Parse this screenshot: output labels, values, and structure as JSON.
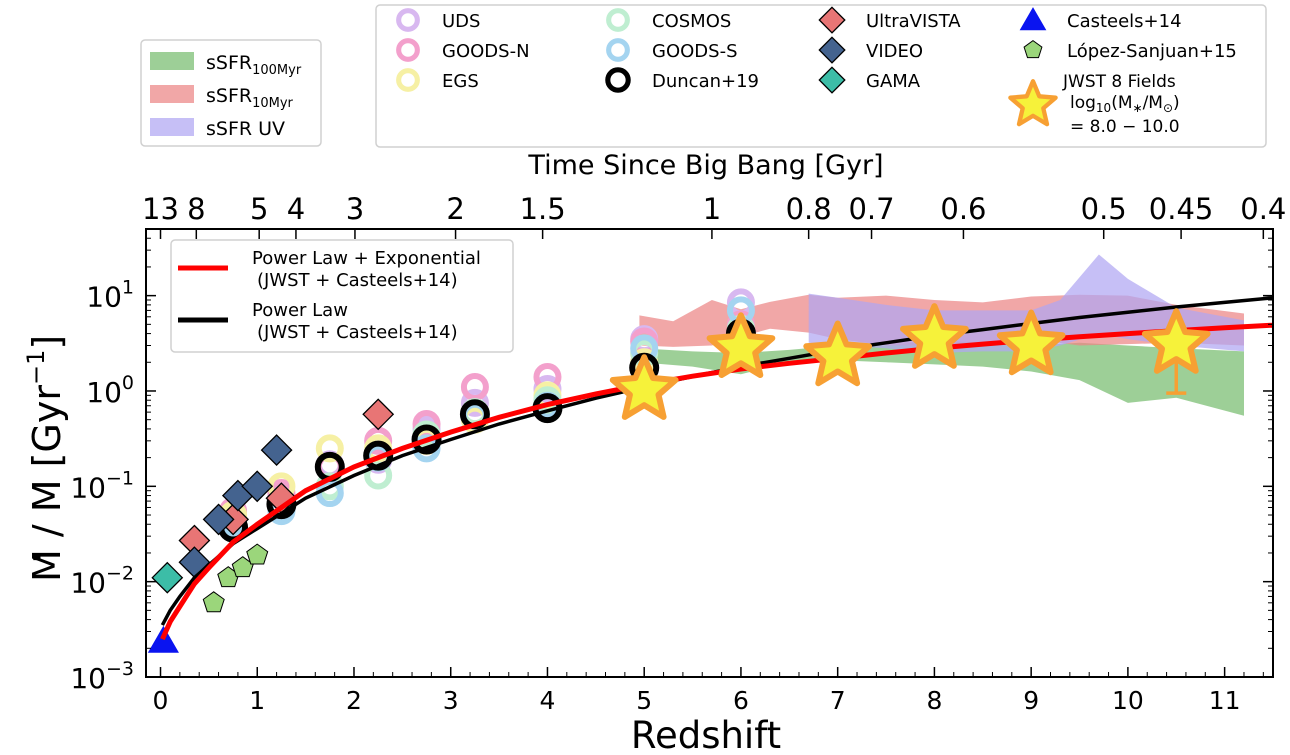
{
  "chart_data": {
    "type": "scatter",
    "xlabel": "Redshift",
    "ylabel_main": "M / M [Gyr",
    "ylabel_sup": "−1",
    "ylabel_close": "]",
    "ylabel_dot": "·",
    "top_xlabel": "Time Since Big Bang [Gyr]",
    "yscale": "log",
    "xlim": [
      -0.15,
      11.5
    ],
    "ylim": [
      0.001,
      50
    ],
    "x_ticks": [
      "0",
      "1",
      "2",
      "3",
      "4",
      "5",
      "6",
      "7",
      "8",
      "9",
      "10",
      "11"
    ],
    "y_tick_base": "10",
    "y_ticks": [
      {
        "value": 0.001,
        "exp": "−3"
      },
      {
        "value": 0.01,
        "exp": "−2"
      },
      {
        "value": 0.1,
        "exp": "−1"
      },
      {
        "value": 1,
        "exp": "0"
      },
      {
        "value": 10,
        "exp": "1"
      }
    ],
    "top_ticks": [
      {
        "label": "13",
        "z": 0.0
      },
      {
        "label": "8",
        "z": 0.37
      },
      {
        "label": "5",
        "z": 1.02
      },
      {
        "label": "4",
        "z": 1.4
      },
      {
        "label": "3",
        "z": 2.01
      },
      {
        "label": "2",
        "z": 3.05
      },
      {
        "label": "1.5",
        "z": 3.95
      },
      {
        "label": "1",
        "z": 5.7
      },
      {
        "label": "0.8",
        "z": 6.7
      },
      {
        "label": "0.7",
        "z": 7.35
      },
      {
        "label": "0.6",
        "z": 8.3
      },
      {
        "label": "0.5",
        "z": 9.75
      },
      {
        "label": "0.45",
        "z": 10.55
      },
      {
        "label": "0.4",
        "z": 11.4
      }
    ],
    "bands": [
      {
        "name": "sSFR_100Myr",
        "label_main": "sSFR",
        "label_sub": "100Myr",
        "color": "#77bd6f",
        "x": [
          4.95,
          5.5,
          6.0,
          6.5,
          7.0,
          7.5,
          8.0,
          8.5,
          9.0,
          9.5,
          10.0,
          10.5,
          11.2
        ],
        "upper": [
          2.8,
          2.6,
          2.5,
          2.7,
          3.0,
          3.0,
          3.4,
          3.2,
          3.0,
          3.2,
          3.0,
          2.8,
          2.6
        ],
        "lower": [
          2.0,
          1.8,
          1.5,
          2.0,
          2.1,
          2.0,
          1.9,
          1.8,
          1.6,
          1.3,
          0.75,
          0.85,
          0.55
        ]
      },
      {
        "name": "sSFR_10Myr",
        "label_main": "sSFR",
        "label_sub": "10Myr",
        "color": "#ec8585",
        "x": [
          4.95,
          5.3,
          5.7,
          6.0,
          6.3,
          6.7,
          7.0,
          7.5,
          8.0,
          8.5,
          9.0,
          9.5,
          10.0,
          10.5,
          11.2
        ],
        "upper": [
          6.2,
          5.4,
          9.0,
          7.2,
          8.6,
          10.2,
          9.5,
          10.0,
          9.0,
          8.5,
          9.8,
          10.2,
          10.0,
          8.0,
          6.5
        ],
        "lower": [
          3.0,
          2.9,
          3.0,
          3.7,
          4.5,
          4.1,
          3.5,
          3.0,
          3.0,
          3.2,
          3.5,
          3.0,
          3.1,
          3.2,
          3.0
        ]
      },
      {
        "name": "sSFR_UV",
        "label_main": "sSFR UV",
        "label_sub": "",
        "color": "#b0a6f2",
        "x": [
          6.7,
          7.0,
          7.5,
          8.0,
          8.5,
          9.0,
          9.3,
          9.7,
          10.0,
          10.5,
          11.2
        ],
        "upper": [
          10.5,
          9.5,
          8.0,
          7.0,
          7.0,
          7.0,
          9.0,
          27.0,
          15.0,
          7.5,
          5.5
        ],
        "lower": [
          3.2,
          3.0,
          2.8,
          2.5,
          2.6,
          2.6,
          3.0,
          4.0,
          3.5,
          3.0,
          2.6
        ]
      }
    ],
    "models": [
      {
        "name": "Power Law + Exponential",
        "line2": "(JWST + Casteels+14)",
        "color": "#ff0000",
        "x": [
          0.02,
          0.1,
          0.2,
          0.35,
          0.5,
          0.75,
          1.0,
          1.5,
          2.0,
          2.5,
          3.0,
          3.5,
          4.0,
          4.5,
          5.0,
          5.5,
          6.0,
          6.5,
          7.0,
          7.5,
          8.0,
          8.5,
          9.0,
          9.5,
          10.0,
          10.5,
          11.0,
          11.5
        ],
        "y": [
          0.0025,
          0.0038,
          0.0055,
          0.0095,
          0.014,
          0.026,
          0.04,
          0.09,
          0.16,
          0.25,
          0.37,
          0.53,
          0.72,
          0.93,
          1.17,
          1.43,
          1.7,
          1.95,
          2.2,
          2.5,
          2.8,
          3.1,
          3.4,
          3.7,
          4.0,
          4.3,
          4.6,
          4.9
        ]
      },
      {
        "name": "Power Law",
        "line2": "(JWST + Casteels+14)",
        "color": "#000000",
        "x": [
          0.02,
          0.1,
          0.2,
          0.35,
          0.5,
          0.75,
          1.0,
          1.5,
          2.0,
          2.5,
          3.0,
          3.5,
          4.0,
          4.5,
          5.0,
          5.5,
          6.0,
          6.5,
          7.0,
          7.5,
          8.0,
          8.5,
          9.0,
          9.5,
          10.0,
          10.5,
          11.0,
          11.5
        ],
        "y": [
          0.0035,
          0.005,
          0.007,
          0.011,
          0.015,
          0.025,
          0.036,
          0.075,
          0.13,
          0.21,
          0.31,
          0.45,
          0.62,
          0.84,
          1.1,
          1.42,
          1.8,
          2.2,
          2.7,
          3.2,
          3.8,
          4.4,
          5.1,
          5.9,
          6.7,
          7.6,
          8.5,
          9.5
        ]
      }
    ],
    "series": [
      {
        "name": "UDS",
        "marker": "ring",
        "color": "#d8b8f0",
        "points": [
          [
            0.75,
            0.045
          ],
          [
            1.25,
            0.08
          ],
          [
            1.75,
            0.17
          ],
          [
            2.25,
            0.19
          ],
          [
            2.75,
            0.4
          ],
          [
            3.25,
            0.75
          ],
          [
            4.0,
            1.05
          ],
          [
            5.0,
            3.5
          ],
          [
            6.0,
            8.5
          ]
        ]
      },
      {
        "name": "GOODS-N",
        "marker": "ring",
        "color": "#f3a0cc",
        "points": [
          [
            0.75,
            0.055
          ],
          [
            1.25,
            0.085
          ],
          [
            1.75,
            0.16
          ],
          [
            2.25,
            0.3
          ],
          [
            2.75,
            0.45
          ],
          [
            3.25,
            1.1
          ],
          [
            4.0,
            1.4
          ],
          [
            5.0,
            3.3
          ],
          [
            6.0,
            5.0
          ]
        ]
      },
      {
        "name": "EGS",
        "marker": "ring",
        "color": "#f6f0a4",
        "points": [
          [
            0.75,
            0.05
          ],
          [
            1.25,
            0.1
          ],
          [
            1.75,
            0.25
          ],
          [
            2.25,
            0.25
          ],
          [
            2.75,
            0.3
          ],
          [
            3.25,
            0.5
          ],
          [
            4.0,
            0.9
          ],
          [
            5.0,
            2.0
          ]
        ]
      },
      {
        "name": "COSMOS",
        "marker": "ring",
        "color": "#bfeed1",
        "points": [
          [
            0.75,
            0.04
          ],
          [
            1.25,
            0.06
          ],
          [
            1.75,
            0.1
          ],
          [
            2.25,
            0.13
          ],
          [
            2.75,
            0.35
          ],
          [
            3.25,
            0.6
          ],
          [
            4.0,
            0.8
          ],
          [
            5.0,
            2.5
          ],
          [
            6.0,
            4.5
          ]
        ]
      },
      {
        "name": "GOODS-S",
        "marker": "ring",
        "color": "#a4d4f0",
        "points": [
          [
            0.75,
            0.04
          ],
          [
            1.25,
            0.055
          ],
          [
            1.75,
            0.085
          ],
          [
            2.25,
            0.2
          ],
          [
            2.75,
            0.25
          ],
          [
            3.25,
            0.55
          ],
          [
            4.0,
            0.7
          ],
          [
            5.0,
            2.8
          ],
          [
            6.0,
            7.0
          ]
        ]
      },
      {
        "name": "Duncan+19",
        "marker": "ring_black",
        "color": "#000000",
        "points": [
          [
            0.75,
            0.037
          ],
          [
            1.25,
            0.065
          ],
          [
            1.75,
            0.16
          ],
          [
            2.25,
            0.21
          ],
          [
            2.75,
            0.31
          ],
          [
            3.25,
            0.57
          ],
          [
            4.0,
            0.66
          ],
          [
            5.0,
            1.75
          ],
          [
            6.0,
            4.0
          ]
        ]
      },
      {
        "name": "UltraVISTA",
        "marker": "diamond",
        "color": "#e87575",
        "points": [
          [
            0.35,
            0.027
          ],
          [
            0.75,
            0.045
          ],
          [
            1.25,
            0.075
          ],
          [
            2.25,
            0.57
          ]
        ]
      },
      {
        "name": "VIDEO",
        "marker": "diamond",
        "color": "#44638f",
        "points": [
          [
            0.35,
            0.016
          ],
          [
            0.6,
            0.045
          ],
          [
            0.8,
            0.08
          ],
          [
            1.0,
            0.1
          ],
          [
            1.2,
            0.24
          ]
        ]
      },
      {
        "name": "GAMA",
        "marker": "diamond",
        "color": "#3cbda7",
        "points": [
          [
            0.07,
            0.011
          ]
        ]
      },
      {
        "name": "Casteels+14",
        "marker": "triangle",
        "color": "#0a14f0",
        "points": [
          [
            0.03,
            0.0024
          ]
        ]
      },
      {
        "name": "López-Sanjuan+15",
        "marker": "pentagon",
        "color": "#9bd67b",
        "points": [
          [
            0.55,
            0.006
          ],
          [
            0.7,
            0.011
          ],
          [
            0.85,
            0.014
          ],
          [
            1.0,
            0.019
          ]
        ]
      },
      {
        "name": "JWST 8 Fields",
        "marker": "star",
        "color": "#f6f23a",
        "edge": "#f7a033",
        "points": [
          [
            5.0,
            1.02
          ],
          [
            6.0,
            2.8
          ],
          [
            7.0,
            2.3
          ],
          [
            8.0,
            3.5
          ],
          [
            9.0,
            3.0
          ],
          [
            10.5,
            3.1
          ]
        ],
        "err_low": [
          null,
          null,
          null,
          null,
          null,
          0.95
        ]
      }
    ],
    "legend_left": [
      "sSFR_100Myr",
      "sSFR_10Myr",
      "sSFR_UV"
    ],
    "legend_top_columns": [
      [
        "UDS",
        "GOODS-N",
        "EGS"
      ],
      [
        "COSMOS",
        "GOODS-S",
        "Duncan+19"
      ],
      [
        "UltraVISTA",
        "VIDEO",
        "GAMA"
      ],
      [
        "Casteels+14",
        "López-Sanjuan+15",
        "JWST 8 Fields"
      ]
    ],
    "jwst_legend_extra": {
      "line2_pre": "log",
      "line2_sub": "10",
      "line2_post": "(M",
      "line2_sub2": "∗",
      "line2_mid": "/M",
      "line2_sub3": "⊙",
      "line2_end": ")",
      "line3": "= 8.0 − 10.0"
    }
  }
}
